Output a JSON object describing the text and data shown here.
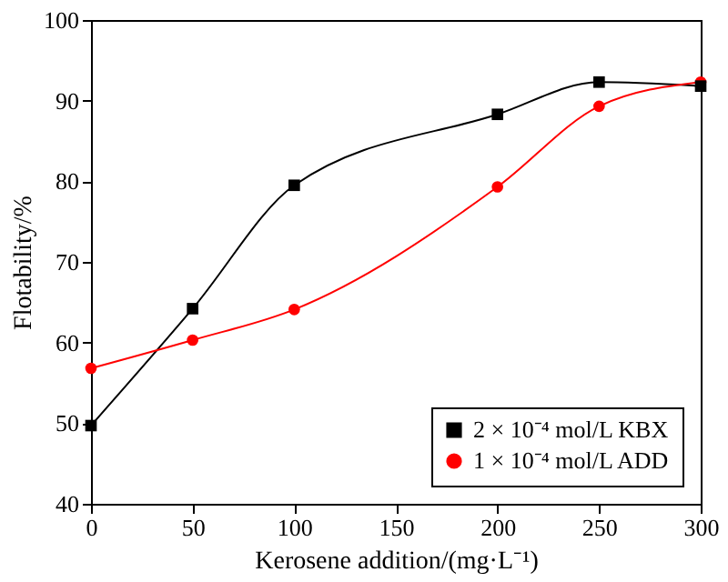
{
  "chart_data": {
    "type": "line",
    "xlabel": "Kerosene addition/(mg·L⁻¹)",
    "ylabel": "Flotability/%",
    "x": [
      0,
      50,
      100,
      200,
      250,
      300
    ],
    "series": [
      {
        "name": "2 × 10⁻⁴ mol/L KBX",
        "color": "#000000",
        "marker": "square",
        "values": [
          49.7,
          64.2,
          79.5,
          88.3,
          92.3,
          91.8
        ]
      },
      {
        "name": "1 × 10⁻⁴ mol/L ADD",
        "color": "#ff0000",
        "marker": "circle",
        "values": [
          56.8,
          60.3,
          64.1,
          79.3,
          89.3,
          92.3
        ]
      }
    ],
    "xlim": [
      0,
      300
    ],
    "xticks": [
      0,
      50,
      100,
      150,
      200,
      250,
      300
    ],
    "ylim": [
      40,
      100
    ],
    "yticks": [
      40,
      50,
      60,
      70,
      80,
      90,
      100
    ],
    "grid": false,
    "legend": "bottom right",
    "line_style": "solid"
  }
}
